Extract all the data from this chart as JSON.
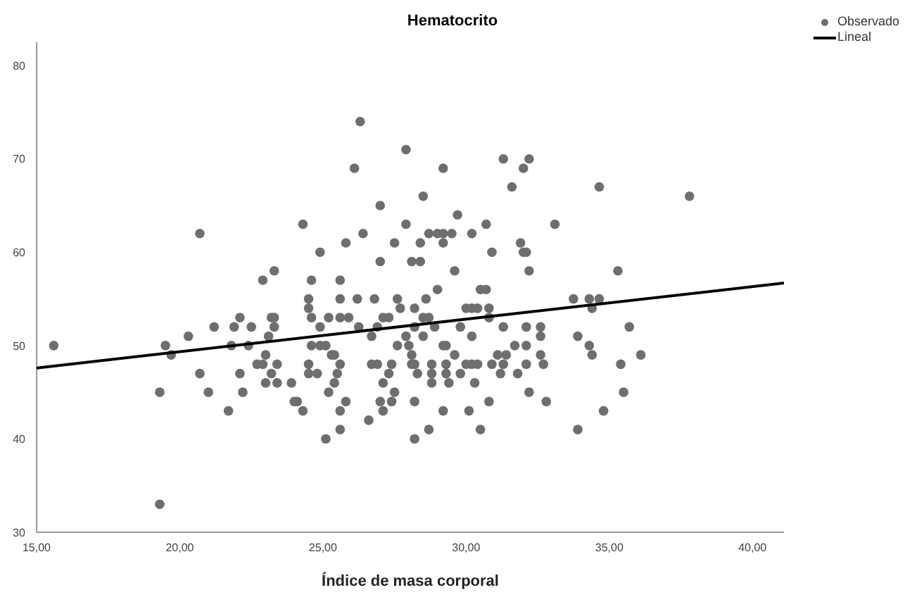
{
  "chart_data": {
    "type": "scatter",
    "title": "Hematocrito",
    "xlabel": "Índice de masa corporal",
    "xlim": [
      15,
      41.1
    ],
    "xticks": [
      {
        "value": 15,
        "label": "15,00"
      },
      {
        "value": 20,
        "label": "20,00"
      },
      {
        "value": 25,
        "label": "25,00"
      },
      {
        "value": 30,
        "label": "30,00"
      },
      {
        "value": 35,
        "label": "35,00"
      },
      {
        "value": 40,
        "label": "40,00"
      }
    ],
    "ylim": [
      30,
      82.5
    ],
    "yticks": [
      30,
      40,
      50,
      60,
      70,
      80
    ],
    "legend": "top right",
    "marker": "circle",
    "series": [
      {
        "name": "Observado",
        "color": "#6e6e6e",
        "x": [
          15.6,
          20.7,
          19.3,
          19.3,
          19.5,
          19.7,
          20.3,
          20.7,
          21.0,
          21.2,
          21.7,
          21.8,
          21.9,
          22.1,
          22.1,
          22.2,
          22.4,
          22.5,
          22.7,
          22.9,
          22.9,
          23.0,
          23.0,
          23.1,
          23.2,
          23.2,
          23.3,
          23.3,
          23.3,
          23.4,
          23.4,
          23.9,
          24.0,
          24.1,
          24.3,
          24.3,
          24.5,
          24.5,
          24.6,
          24.6,
          24.6,
          24.5,
          24.5,
          24.8,
          24.9,
          24.9,
          24.9,
          26.3,
          27.9,
          26.1,
          29.2,
          31.3,
          32.2,
          32.0,
          31.6,
          28.5,
          27.0,
          29.7,
          27.9,
          30.7,
          26.4,
          28.7,
          29.0,
          29.2,
          29.5,
          30.2,
          25.8,
          27.5,
          28.4,
          29.2,
          31.9,
          30.9,
          32.0,
          32.1,
          27.0,
          28.1,
          28.4,
          29.6,
          32.2,
          25.6,
          29.0,
          30.5,
          30.7,
          25.6,
          26.2,
          26.8,
          27.6,
          28.6,
          27.7,
          28.2,
          30.0,
          30.2,
          30.4,
          30.8,
          25.2,
          25.6,
          25.9,
          27.1,
          27.3,
          28.5,
          28.7,
          30.8,
          26.25,
          26.9,
          28.2,
          28.9,
          29.8,
          31.3,
          32.1,
          32.6,
          26.7,
          27.9,
          28.5,
          30.2,
          32.6,
          25.1,
          27.6,
          28.0,
          29.2,
          29.3,
          31.7,
          32.1,
          25.3,
          25.4,
          28.1,
          29.6,
          31.1,
          31.4,
          32.6,
          25.6,
          26.7,
          26.9,
          27.4,
          28.1,
          28.2,
          28.8,
          29.3,
          30.0,
          30.2,
          30.4,
          30.9,
          31.3,
          32.1,
          32.7,
          25.5,
          27.3,
          28.3,
          28.8,
          29.3,
          29.8,
          31.2,
          31.8,
          25.4,
          27.1,
          28.8,
          29.4,
          30.3,
          25.2,
          27.5,
          32.2,
          25.8,
          27.0,
          27.4,
          28.2,
          30.8,
          32.8,
          25.6,
          27.1,
          29.2,
          30.1,
          26.6,
          25.6,
          28.7,
          30.5,
          25.1,
          28.2,
          34.65,
          37.8,
          33.1,
          35.3,
          33.75,
          34.3,
          34.65,
          34.4,
          35.7,
          33.9,
          34.3,
          34.4,
          36.1,
          35.4,
          35.5,
          34.8,
          33.9
        ],
        "values": [
          50,
          62,
          33,
          45,
          50,
          49,
          51,
          47,
          45,
          52,
          43,
          50,
          52,
          53,
          47,
          45,
          50,
          52,
          48,
          57,
          48,
          49,
          46,
          51,
          47,
          53,
          52,
          53,
          58,
          46,
          48,
          46,
          44,
          44,
          43,
          63,
          55,
          54,
          53,
          57,
          50,
          48,
          47,
          47,
          60,
          52,
          50,
          74,
          71,
          69,
          69,
          70,
          70,
          69,
          67,
          66,
          65,
          64,
          63,
          63,
          62,
          62,
          62,
          62,
          62,
          62,
          61,
          61,
          61,
          61,
          61,
          60,
          60,
          60,
          59,
          59,
          59,
          58,
          58,
          57,
          56,
          56,
          56,
          55,
          55,
          55,
          55,
          55,
          54,
          54,
          54,
          54,
          54,
          54,
          53,
          53,
          53,
          53,
          53,
          53,
          53,
          53,
          52,
          52,
          52,
          52,
          52,
          52,
          52,
          52,
          51,
          51,
          51,
          51,
          51,
          50,
          50,
          50,
          50,
          50,
          50,
          50,
          49,
          49,
          49,
          49,
          49,
          49,
          49,
          48,
          48,
          48,
          48,
          48,
          48,
          48,
          48,
          48,
          48,
          48,
          48,
          48,
          48,
          48,
          47,
          47,
          47,
          47,
          47,
          47,
          47,
          47,
          46,
          46,
          46,
          46,
          46,
          45,
          45,
          45,
          44,
          44,
          44,
          44,
          44,
          44,
          43,
          43,
          43,
          43,
          42,
          41,
          41,
          41,
          40,
          40,
          67,
          66,
          63,
          58,
          55,
          55,
          55,
          54,
          52,
          51,
          50,
          49,
          49,
          48,
          45,
          43,
          41
        ]
      },
      {
        "name": "Lineal",
        "type": "line",
        "marker": "none",
        "color": "#000000",
        "x": [
          15,
          41.1
        ],
        "values": [
          47.6,
          56.7
        ]
      }
    ]
  }
}
